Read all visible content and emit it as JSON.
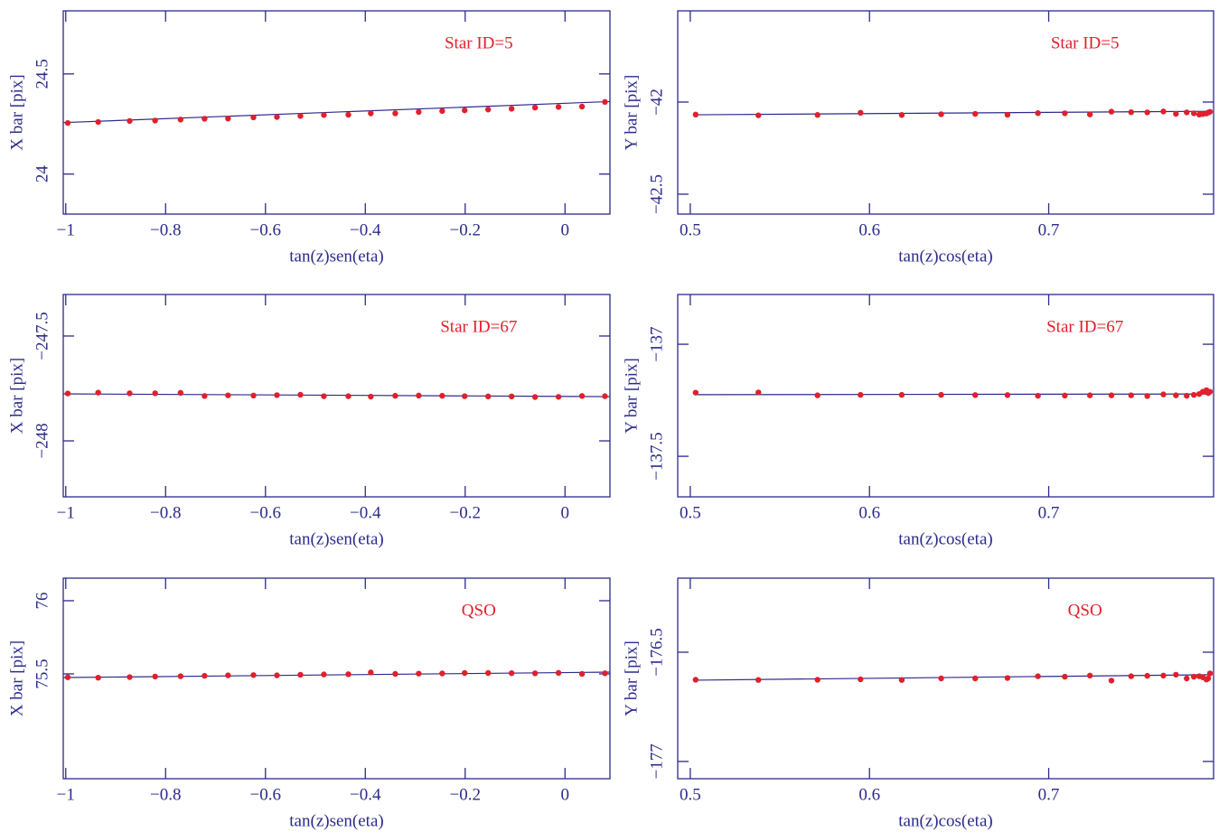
{
  "chart_data": [
    {
      "type": "scatter",
      "annotation": "Star ID=5",
      "xlabel": "tan(z)sen(eta)",
      "ylabel": "X bar [pix]",
      "x": [
        -0.996,
        -0.935,
        -0.872,
        -0.821,
        -0.77,
        -0.722,
        -0.675,
        -0.624,
        -0.577,
        -0.53,
        -0.483,
        -0.434,
        -0.389,
        -0.34,
        -0.293,
        -0.246,
        -0.201,
        -0.154,
        -0.107,
        -0.06,
        -0.013,
        0.034,
        0.08
      ],
      "y": [
        24.255,
        24.26,
        24.265,
        24.267,
        24.272,
        24.276,
        24.277,
        24.283,
        24.285,
        24.29,
        24.295,
        24.296,
        24.303,
        24.303,
        24.31,
        24.315,
        24.318,
        24.322,
        24.326,
        24.332,
        24.335,
        24.337,
        24.36
      ],
      "fit": {
        "x": [
          -1.005,
          0.09
        ],
        "y": [
          24.257,
          24.362
        ]
      },
      "xlim": [
        -1.005,
        0.09
      ],
      "ylim": [
        23.8,
        24.815
      ],
      "xticks": [
        {
          "value": -1,
          "label": "−1"
        },
        {
          "value": -0.8,
          "label": "−0.8"
        },
        {
          "value": -0.6,
          "label": "−0.6"
        },
        {
          "value": -0.4,
          "label": "−0.4"
        },
        {
          "value": -0.2,
          "label": "−0.2"
        },
        0
      ],
      "yticks": [
        24,
        24.5
      ],
      "color": "#e0202c",
      "line_color": "#2b2b8c"
    },
    {
      "type": "scatter",
      "annotation": "Star ID=5",
      "xlabel": "tan(z)cos(eta)",
      "ylabel": "Y bar [pix]",
      "x": [
        0.503,
        0.538,
        0.571,
        0.595,
        0.618,
        0.64,
        0.659,
        0.677,
        0.694,
        0.709,
        0.723,
        0.735,
        0.746,
        0.755,
        0.764,
        0.771,
        0.777,
        0.781,
        0.784,
        0.786,
        0.788,
        0.789,
        0.79
      ],
      "y": [
        -42.068,
        -42.072,
        -42.07,
        -42.058,
        -42.07,
        -42.066,
        -42.064,
        -42.069,
        -42.06,
        -42.061,
        -42.067,
        -42.052,
        -42.055,
        -42.056,
        -42.051,
        -42.064,
        -42.056,
        -42.061,
        -42.068,
        -42.065,
        -42.062,
        -42.057,
        -42.053
      ],
      "fit": {
        "x": [
          0.503,
          0.79
        ],
        "y": [
          -42.069,
          -42.05
        ]
      },
      "xlim": [
        0.493,
        0.792
      ],
      "ylim": [
        -42.608,
        -41.505
      ],
      "xticks": [
        0.5,
        0.6,
        0.7
      ],
      "yticks": [
        {
          "value": -42.5,
          "label": "−42.5"
        },
        {
          "value": -42,
          "label": "−42"
        }
      ],
      "color": "#e0202c",
      "line_color": "#2b2b8c"
    },
    {
      "type": "scatter",
      "annotation": "Star ID=67",
      "xlabel": "tan(z)sen(eta)",
      "ylabel": "X bar [pix]",
      "x": [
        -0.996,
        -0.935,
        -0.872,
        -0.821,
        -0.77,
        -0.722,
        -0.675,
        -0.624,
        -0.577,
        -0.53,
        -0.483,
        -0.434,
        -0.389,
        -0.34,
        -0.293,
        -0.246,
        -0.201,
        -0.154,
        -0.107,
        -0.06,
        -0.013,
        0.034,
        0.08
      ],
      "y": [
        -247.774,
        -247.77,
        -247.773,
        -247.773,
        -247.771,
        -247.786,
        -247.783,
        -247.784,
        -247.782,
        -247.78,
        -247.787,
        -247.787,
        -247.789,
        -247.785,
        -247.784,
        -247.785,
        -247.787,
        -247.788,
        -247.788,
        -247.791,
        -247.79,
        -247.786,
        -247.787
      ],
      "fit": {
        "x": [
          -1.005,
          0.09
        ],
        "y": [
          -247.776,
          -247.789
        ]
      },
      "xlim": [
        -1.005,
        0.09
      ],
      "ylim": [
        -248.267,
        -247.302
      ],
      "xticks": [
        {
          "value": -1,
          "label": "−1"
        },
        {
          "value": -0.8,
          "label": "−0.8"
        },
        {
          "value": -0.6,
          "label": "−0.6"
        },
        {
          "value": -0.4,
          "label": "−0.4"
        },
        {
          "value": -0.2,
          "label": "−0.2"
        },
        0
      ],
      "yticks": [
        {
          "value": -248,
          "label": "−248"
        },
        {
          "value": -247.5,
          "label": "−247.5"
        }
      ],
      "color": "#e0202c",
      "line_color": "#2b2b8c"
    },
    {
      "type": "scatter",
      "annotation": "Star ID=67",
      "xlabel": "tan(z)cos(eta)",
      "ylabel": "Y bar [pix]",
      "x": [
        0.503,
        0.538,
        0.571,
        0.595,
        0.618,
        0.64,
        0.659,
        0.677,
        0.694,
        0.709,
        0.723,
        0.735,
        0.746,
        0.755,
        0.764,
        0.771,
        0.777,
        0.781,
        0.784,
        0.786,
        0.788,
        0.789,
        0.79
      ],
      "y": [
        -137.216,
        -137.215,
        -137.228,
        -137.226,
        -137.226,
        -137.226,
        -137.227,
        -137.227,
        -137.23,
        -137.229,
        -137.228,
        -137.228,
        -137.228,
        -137.231,
        -137.224,
        -137.228,
        -137.23,
        -137.226,
        -137.222,
        -137.212,
        -137.205,
        -137.218,
        -137.212
      ],
      "fit": {
        "x": [
          0.503,
          0.79
        ],
        "y": [
          -137.225,
          -137.222
        ]
      },
      "xlim": [
        0.493,
        0.792
      ],
      "ylim": [
        -137.681,
        -136.778
      ],
      "xticks": [
        0.5,
        0.6,
        0.7
      ],
      "yticks": [
        {
          "value": -137.5,
          "label": "−137.5"
        },
        {
          "value": -137,
          "label": "−137"
        }
      ],
      "color": "#e0202c",
      "line_color": "#2b2b8c"
    },
    {
      "type": "scatter",
      "annotation": "QSO",
      "xlabel": "tan(z)sen(eta)",
      "ylabel": "X bar [pix]",
      "x": [
        -0.996,
        -0.935,
        -0.872,
        -0.821,
        -0.77,
        -0.722,
        -0.675,
        -0.624,
        -0.577,
        -0.53,
        -0.483,
        -0.434,
        -0.389,
        -0.34,
        -0.293,
        -0.246,
        -0.201,
        -0.154,
        -0.107,
        -0.06,
        -0.013,
        0.034,
        0.08
      ],
      "y": [
        75.477,
        75.474,
        75.478,
        75.482,
        75.484,
        75.487,
        75.49,
        75.492,
        75.49,
        75.494,
        75.496,
        75.498,
        75.51,
        75.5,
        75.502,
        75.503,
        75.506,
        75.506,
        75.505,
        75.504,
        75.507,
        75.5,
        75.504
      ],
      "fit": {
        "x": [
          -1.005,
          0.09
        ],
        "y": [
          75.475,
          75.512
        ]
      },
      "xlim": [
        -1.005,
        0.09
      ],
      "ylim": [
        74.784,
        76.154
      ],
      "xticks": [
        {
          "value": -1,
          "label": "−1"
        },
        {
          "value": -0.8,
          "label": "−0.8"
        },
        {
          "value": -0.6,
          "label": "−0.6"
        },
        {
          "value": -0.4,
          "label": "−0.4"
        },
        {
          "value": -0.2,
          "label": "−0.2"
        },
        0
      ],
      "yticks": [
        75.5,
        76
      ],
      "color": "#e0202c",
      "line_color": "#2b2b8c"
    },
    {
      "type": "scatter",
      "annotation": "QSO",
      "xlabel": "tan(z)cos(eta)",
      "ylabel": "Y bar [pix]",
      "x": [
        0.503,
        0.538,
        0.571,
        0.595,
        0.618,
        0.64,
        0.659,
        0.677,
        0.694,
        0.709,
        0.723,
        0.735,
        0.746,
        0.755,
        0.764,
        0.771,
        0.777,
        0.781,
        0.784,
        0.786,
        0.788,
        0.789,
        0.79
      ],
      "y": [
        -176.626,
        -176.627,
        -176.626,
        -176.624,
        -176.627,
        -176.62,
        -176.62,
        -176.618,
        -176.61,
        -176.612,
        -176.607,
        -176.63,
        -176.61,
        -176.608,
        -176.607,
        -176.603,
        -176.62,
        -176.612,
        -176.61,
        -176.615,
        -176.625,
        -176.62,
        -176.597
      ],
      "fit": {
        "x": [
          0.503,
          0.79
        ],
        "y": [
          -176.628,
          -176.603
        ]
      },
      "xlim": [
        0.493,
        0.792
      ],
      "ylim": [
        -177.079,
        -176.161
      ],
      "xticks": [
        0.5,
        0.6,
        0.7
      ],
      "yticks": [
        {
          "value": -177,
          "label": "−177"
        },
        {
          "value": -176.5,
          "label": "−176.5"
        }
      ],
      "color": "#e0202c",
      "line_color": "#2b2b8c"
    }
  ]
}
